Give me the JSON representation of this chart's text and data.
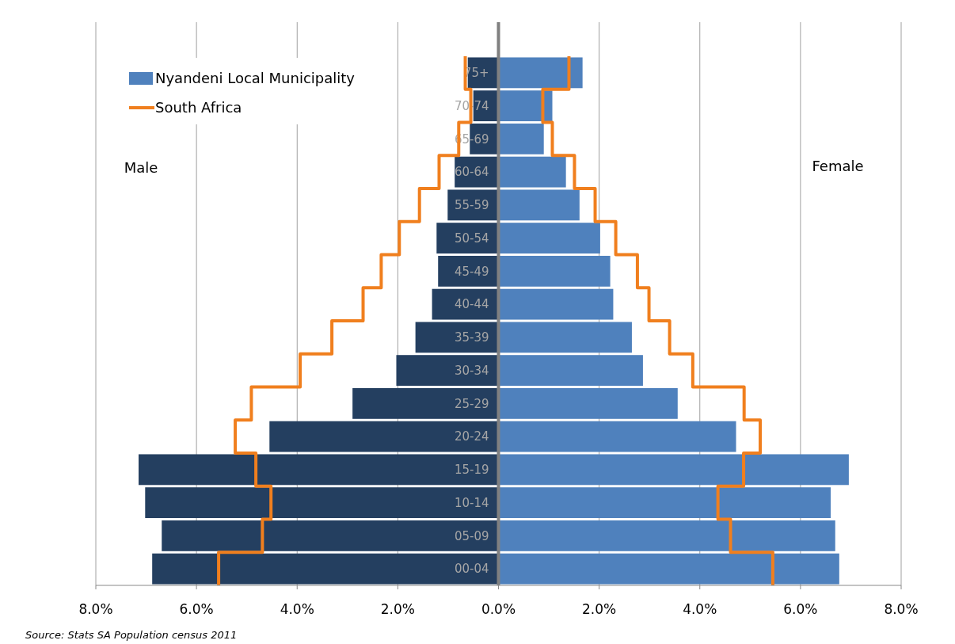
{
  "chart_data": {
    "type": "bar",
    "orientation": "horizontal",
    "categories": [
      "75+",
      "70-74",
      "65-69",
      "60-64",
      "55-59",
      "50-54",
      "45-49",
      "40-44",
      "35-39",
      "30-34",
      "25-29",
      "20-24",
      "15-19",
      "10-14",
      "05-09",
      "00-04"
    ],
    "series": [
      {
        "color": "#243f60",
        "values": [
          -0.61,
          -0.5,
          -0.57,
          -0.87,
          -1.01,
          -1.23,
          -1.2,
          -1.32,
          -1.65,
          -2.03,
          -2.9,
          -4.55,
          -7.15,
          -7.02,
          -6.69,
          -6.88
        ]
      },
      {
        "name": "Nyandeni Local Municipality",
        "color": "#4f81bd",
        "values": [
          1.67,
          1.07,
          0.9,
          1.34,
          1.61,
          2.02,
          2.22,
          2.28,
          2.65,
          2.87,
          3.56,
          4.72,
          6.96,
          6.6,
          6.69,
          6.77
        ]
      },
      {
        "type": "step",
        "color": "#f07f1e",
        "values": [
          -0.66,
          -0.55,
          -0.79,
          -1.18,
          -1.57,
          -1.97,
          -2.33,
          -2.69,
          -3.31,
          -3.94,
          -4.91,
          -5.23,
          -4.82,
          -4.52,
          -4.69,
          -5.56
        ]
      },
      {
        "type": "step",
        "name": "South Africa",
        "color": "#f07f1e",
        "values": [
          1.4,
          0.88,
          1.07,
          1.51,
          1.92,
          2.33,
          2.76,
          2.99,
          3.4,
          3.86,
          4.88,
          5.2,
          4.87,
          4.36,
          4.61,
          5.45
        ]
      }
    ],
    "xlim": [
      -8,
      8
    ],
    "xticks": [
      {
        "value": -8,
        "label": "8.0%"
      },
      {
        "value": -6,
        "label": "6.0%"
      },
      {
        "value": -4,
        "label": "4.0%"
      },
      {
        "value": -2,
        "label": "2.0%"
      },
      {
        "value": 0,
        "label": "0.0%"
      },
      {
        "value": 2,
        "label": "2.0%"
      },
      {
        "value": 4,
        "label": "4.0%"
      },
      {
        "value": 6,
        "label": "6.0%"
      },
      {
        "value": 8,
        "label": "8.0%"
      }
    ],
    "grid": "x",
    "legend": "top left",
    "stacked": true,
    "annotations": [
      "Male",
      "Female",
      "Source: Stats SA Population census 2011"
    ]
  }
}
